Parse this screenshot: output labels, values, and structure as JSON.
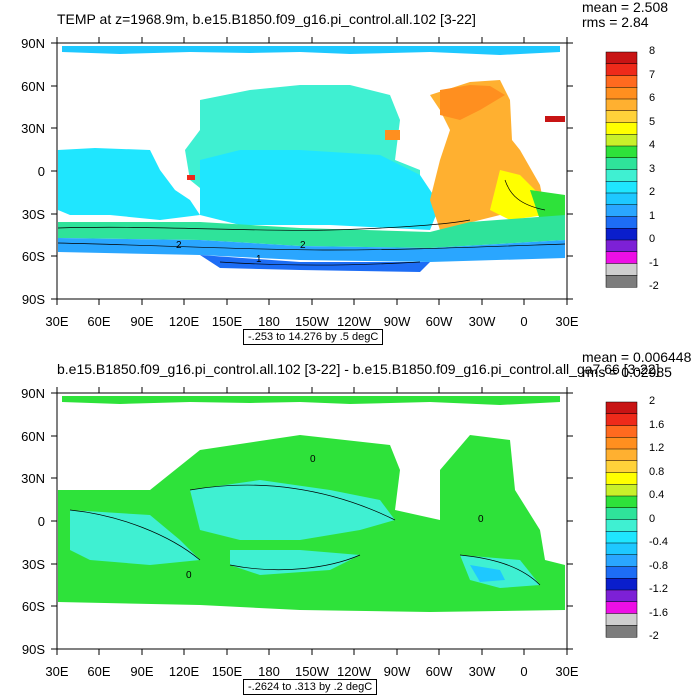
{
  "panels": [
    {
      "title": "TEMP at z=1968.9m, b.e15.B1850.f09_g16.pi_control.all.102 [3-22]",
      "mean": "mean = 2.508",
      "rms": "rms = 2.84",
      "range": "-.253 to 14.276 by .5 degC",
      "lat_labels": [
        "90N",
        "60N",
        "30N",
        "0",
        "30S",
        "60S",
        "90S"
      ],
      "lon_labels": [
        "30E",
        "60E",
        "90E",
        "120E",
        "150E",
        "180",
        "150W",
        "120W",
        "90W",
        "60W",
        "30W",
        "0",
        "30E"
      ],
      "colorbar_labels": [
        "8",
        "7",
        "6",
        "5",
        "4",
        "3",
        "2",
        "1",
        "0",
        "-1",
        "-2"
      ],
      "colorbar_colors": [
        "#c81414",
        "#ee2a1a",
        "#ff6a1f",
        "#ff8f1f",
        "#ffb030",
        "#ffd23a",
        "#ffff00",
        "#c9f02a",
        "#2ee23a",
        "#2fe39a",
        "#3ff0d2",
        "#1fe6ff",
        "#1ec8ff",
        "#2aa6ff",
        "#1d6df5",
        "#0a1ecc",
        "#7d20d6",
        "#ee0fe6",
        "#cfcfcf",
        "#7d7d7d"
      ],
      "contour_labels": [
        "2",
        "2",
        "1"
      ]
    },
    {
      "title": "b.e15.B1850.f09_g16.pi_control.all.102 [3-22] - b.e15.B1850.f09_g16.pi_control.all_ga7.66 [3-22]",
      "mean": "mean = 0.006448",
      "rms": "rms = 0.02985",
      "range": "-.2624 to .313 by .2 degC",
      "lat_labels": [
        "90N",
        "60N",
        "30N",
        "0",
        "30S",
        "60S",
        "90S"
      ],
      "lon_labels": [
        "30E",
        "60E",
        "90E",
        "120E",
        "150E",
        "180",
        "150W",
        "120W",
        "90W",
        "60W",
        "30W",
        "0",
        "30E"
      ],
      "colorbar_labels": [
        "2",
        "1.6",
        "1.2",
        "0.8",
        "0.4",
        "0",
        "-0.4",
        "-0.8",
        "-1.2",
        "-1.6",
        "-2"
      ],
      "colorbar_colors": [
        "#c81414",
        "#ee2a1a",
        "#ff6a1f",
        "#ff8f1f",
        "#ffb030",
        "#ffd23a",
        "#ffff00",
        "#c9f02a",
        "#2ee23a",
        "#2fe39a",
        "#3ff0d2",
        "#1fe6ff",
        "#1ec8ff",
        "#2aa6ff",
        "#1d6df5",
        "#0a1ecc",
        "#7d20d6",
        "#ee0fe6",
        "#cfcfcf",
        "#7d7d7d"
      ],
      "contour_labels": [
        "0",
        "0",
        "0"
      ]
    }
  ]
}
